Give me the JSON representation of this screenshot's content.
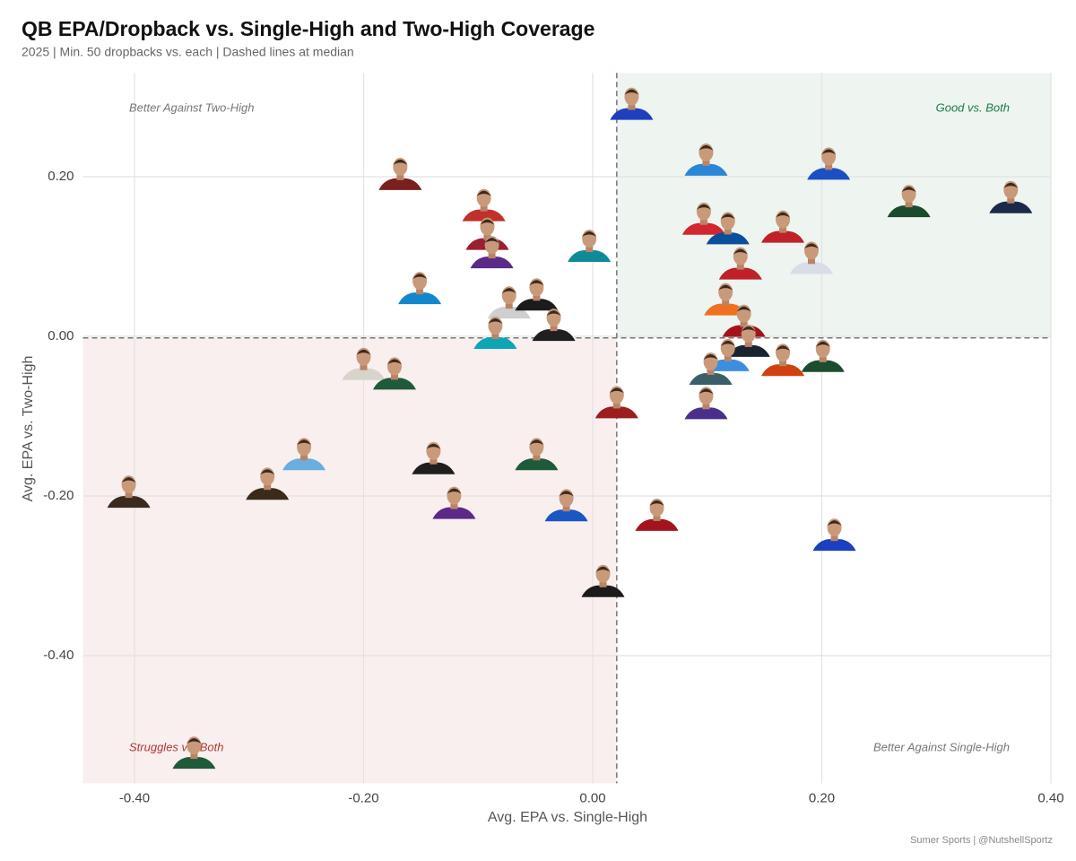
{
  "chart_data": {
    "type": "scatter",
    "title": "QB EPA/Dropback vs. Single-High and Two-High Coverage",
    "subtitle": "2025 | Min. 50 dropbacks vs. each | Dashed lines at median",
    "x_label": "Avg. EPA vs. Single-High",
    "y_label": "Avg. EPA vs. Two-High",
    "source": "Sumer Sports | @NutshellSportz",
    "median_x": 0.021,
    "median_y": -0.002,
    "quadrants": {
      "top_right": {
        "label": "Good vs. Both",
        "color": "#1e7a4a",
        "fill": "#eef4f0"
      },
      "top_left": {
        "label": "Better Against Two-High",
        "color": "#777777"
      },
      "bottom_left": {
        "label": "Struggles vs. Both",
        "color": "#b03a2e",
        "fill": "#f9efef"
      },
      "bottom_right": {
        "label": "Better Against Single-High",
        "color": "#777777"
      }
    },
    "xlim": [
      -0.445,
      0.4
    ],
    "ylim": [
      -0.56,
      0.33
    ],
    "xticks": [
      {
        "value": -0.4,
        "label": "-0.40"
      },
      {
        "value": -0.2,
        "label": "-0.20"
      },
      {
        "value": 0,
        "label": "0.00"
      },
      {
        "value": 0.2,
        "label": "0.20"
      },
      {
        "value": 0.4,
        "label": "0.40"
      }
    ],
    "yticks": [
      {
        "value": -0.4,
        "label": "-0.40"
      },
      {
        "value": -0.2,
        "label": "-0.20"
      },
      {
        "value": 0,
        "label": "0.00"
      },
      {
        "value": 0.2,
        "label": "0.20"
      }
    ],
    "grid": true,
    "x": [
      0.034,
      0.099,
      0.206,
      0.276,
      0.365,
      -0.168,
      -0.095,
      -0.092,
      -0.088,
      -0.003,
      0.097,
      0.118,
      0.166,
      0.129,
      0.191,
      -0.151,
      -0.073,
      -0.049,
      0.116,
      0.132,
      -0.034,
      -0.085,
      0.136,
      0.118,
      0.166,
      0.201,
      -0.2,
      -0.173,
      0.103,
      0.021,
      0.099,
      -0.252,
      -0.139,
      -0.049,
      -0.284,
      -0.405,
      -0.121,
      -0.023,
      0.056,
      0.211,
      0.009,
      -0.348
    ],
    "values": [
      0.287,
      0.217,
      0.212,
      0.165,
      0.17,
      0.199,
      0.16,
      0.124,
      0.101,
      0.109,
      0.143,
      0.131,
      0.133,
      0.087,
      0.094,
      0.056,
      0.038,
      0.048,
      0.042,
      0.015,
      0.01,
      0.0,
      -0.01,
      -0.028,
      -0.034,
      -0.029,
      -0.039,
      -0.051,
      -0.045,
      -0.087,
      -0.088,
      -0.152,
      -0.157,
      -0.152,
      -0.189,
      -0.199,
      -0.213,
      -0.216,
      -0.228,
      -0.253,
      -0.311,
      -0.526
    ],
    "colors": [
      "#1f3fbf",
      "#2a86d6",
      "#1c4fc4",
      "#1d4a2c",
      "#1b2a4a",
      "#7a1f1f",
      "#c0312b",
      "#9c1f2f",
      "#5b2a86",
      "#0f8a99",
      "#d22730",
      "#0b4f9c",
      "#c0202a",
      "#c0202a",
      "#d9dde8",
      "#1287cc",
      "#cfcfcf",
      "#1b1b1b",
      "#f0701f",
      "#a3131e",
      "#1f1f1f",
      "#0ea5b5",
      "#1a2430",
      "#3d8ee0",
      "#d04010",
      "#1d4d2e",
      "#d8d4cc",
      "#1f5a3a",
      "#3a5f6a",
      "#9c1f1f",
      "#4a2f8a",
      "#6aaee0",
      "#1f1f1f",
      "#1f5a3a",
      "#3a2a1a",
      "#3b2a1f",
      "#5b2a86",
      "#1c55c4",
      "#a3131e",
      "#1c3fbf",
      "#1b1b1b",
      "#1f5a3a"
    ]
  }
}
